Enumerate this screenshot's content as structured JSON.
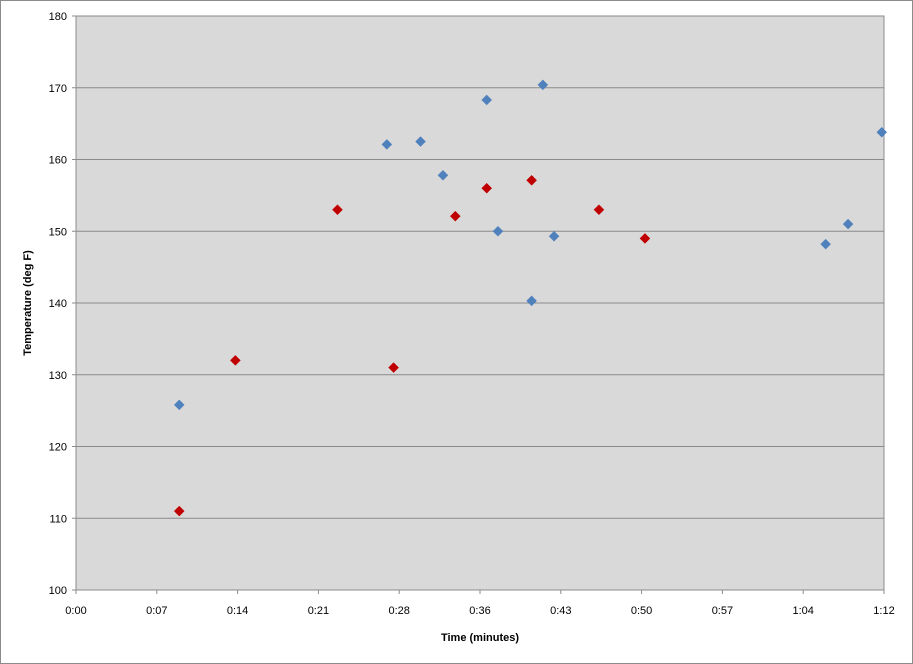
{
  "chart_data": {
    "type": "scatter",
    "title": "",
    "xlabel": "Time (minutes)",
    "ylabel": "Temperature (deg F)",
    "xlim": [
      0,
      72
    ],
    "ylim": [
      100,
      180
    ],
    "x_ticks": [
      0,
      7.2,
      14.4,
      21.6,
      28.8,
      36,
      43.2,
      50.4,
      57.6,
      64.8,
      72
    ],
    "x_tick_labels": [
      "0:00",
      "0:07",
      "0:14",
      "0:21",
      "0:28",
      "0:36",
      "0:43",
      "0:50",
      "0:57",
      "1:04",
      "1:12"
    ],
    "y_ticks": [
      100,
      110,
      120,
      130,
      140,
      150,
      160,
      170,
      180
    ],
    "y_tick_labels": [
      "100",
      "110",
      "120",
      "130",
      "140",
      "150",
      "160",
      "170",
      "180"
    ],
    "grid": "horizontal",
    "legend": "none",
    "plot_background": "#d9d9d9",
    "series": [
      {
        "color": "#4f81bd",
        "marker": "diamond",
        "points": [
          {
            "x": 9.2,
            "y": 125.8
          },
          {
            "x": 27.7,
            "y": 162.1
          },
          {
            "x": 30.7,
            "y": 162.5
          },
          {
            "x": 32.7,
            "y": 157.8
          },
          {
            "x": 36.6,
            "y": 168.3
          },
          {
            "x": 37.6,
            "y": 150.0
          },
          {
            "x": 40.6,
            "y": 140.3
          },
          {
            "x": 41.6,
            "y": 170.4
          },
          {
            "x": 42.6,
            "y": 149.3
          },
          {
            "x": 66.8,
            "y": 148.2
          },
          {
            "x": 68.8,
            "y": 151.0
          },
          {
            "x": 71.8,
            "y": 163.8
          }
        ]
      },
      {
        "color": "#c00000",
        "marker": "diamond",
        "points": [
          {
            "x": 9.2,
            "y": 111.0
          },
          {
            "x": 14.2,
            "y": 132.0
          },
          {
            "x": 23.3,
            "y": 153.0
          },
          {
            "x": 28.3,
            "y": 131.0
          },
          {
            "x": 33.8,
            "y": 152.1
          },
          {
            "x": 36.6,
            "y": 156.0
          },
          {
            "x": 40.6,
            "y": 157.1
          },
          {
            "x": 46.6,
            "y": 153.0
          },
          {
            "x": 50.7,
            "y": 149.0
          }
        ]
      }
    ]
  }
}
